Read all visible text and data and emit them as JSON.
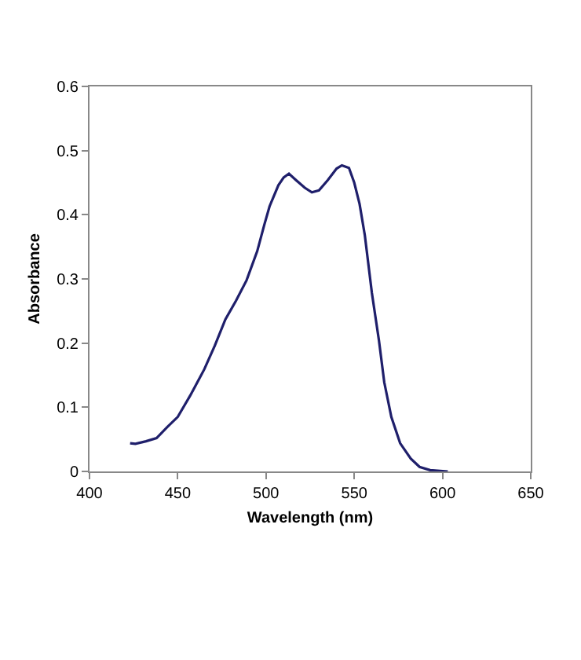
{
  "chart_data": {
    "type": "line",
    "xlabel": "Wavelength (nm)",
    "ylabel": "Absorbance",
    "x": [
      423,
      426,
      432,
      438,
      444,
      450,
      457,
      465,
      471,
      477,
      483,
      489,
      495,
      499,
      502,
      507,
      510,
      513,
      517,
      522,
      526,
      530,
      535,
      540,
      543,
      547,
      550,
      553,
      556,
      560,
      564,
      567,
      571,
      576,
      582,
      587,
      593,
      603
    ],
    "series": [
      {
        "color": "#1f1f6b",
        "values": [
          0.044,
          0.043,
          0.047,
          0.052,
          0.069,
          0.085,
          0.118,
          0.159,
          0.196,
          0.237,
          0.266,
          0.298,
          0.343,
          0.384,
          0.413,
          0.446,
          0.458,
          0.464,
          0.454,
          0.442,
          0.435,
          0.438,
          0.454,
          0.472,
          0.477,
          0.473,
          0.45,
          0.417,
          0.368,
          0.278,
          0.204,
          0.139,
          0.085,
          0.044,
          0.02,
          0.007,
          0.002,
          0
        ]
      }
    ],
    "xlim": [
      400,
      650
    ],
    "xticks": [
      400,
      450,
      500,
      550,
      600,
      650
    ],
    "ylim": [
      0,
      0.6
    ],
    "yticks": [
      0,
      0.1,
      0.2,
      0.3,
      0.4,
      0.5,
      0.6
    ],
    "grid": false,
    "marker": "none",
    "line_style": "solid"
  }
}
